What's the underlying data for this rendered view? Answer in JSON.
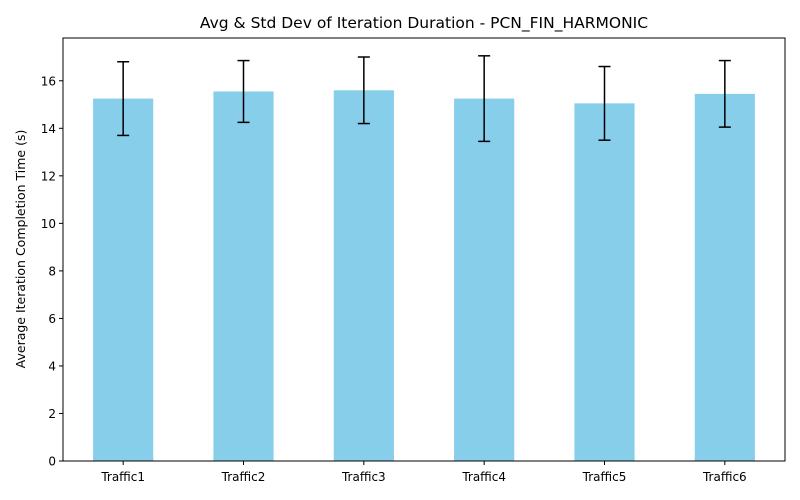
{
  "chart_data": {
    "type": "bar",
    "title": "Avg & Std Dev of Iteration Duration - PCN_FIN_HARMONIC",
    "xlabel": "",
    "ylabel": "Average Iteration Completion Time (s)",
    "categories": [
      "Traffic1",
      "Traffic2",
      "Traffic3",
      "Traffic4",
      "Traffic5",
      "Traffic6"
    ],
    "values": [
      15.25,
      15.55,
      15.6,
      15.25,
      15.05,
      15.45
    ],
    "error": [
      1.55,
      1.3,
      1.4,
      1.8,
      1.55,
      1.4
    ],
    "ylim": [
      0,
      17.8
    ],
    "yticks": [
      0,
      2,
      4,
      6,
      8,
      10,
      12,
      14,
      16
    ],
    "bar_color": "#87ceeb",
    "error_color": "#000000",
    "grid": false,
    "legend": "none"
  }
}
